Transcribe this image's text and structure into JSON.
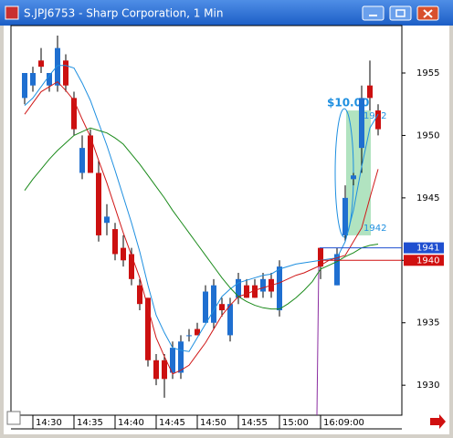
{
  "chart_data": {
    "type": "candlestick",
    "title": "S.JPJ6753 - Sharp Corporation, 1 Min",
    "categories": [
      null,
      "14:30",
      null,
      null,
      null,
      null,
      "14:35",
      null,
      null,
      null,
      null,
      "14:40",
      null,
      null,
      null,
      null,
      "14:45",
      null,
      null,
      null,
      null,
      "14:50",
      null,
      null,
      null,
      null,
      "14:55",
      null,
      null,
      null,
      null,
      "15:00",
      null,
      null,
      null,
      null,
      "16:09:00",
      null,
      null,
      null,
      null,
      null,
      null,
      null
    ],
    "open": [
      1953,
      1954,
      1956,
      1954,
      1954,
      1956,
      1953,
      1947,
      1950,
      1947,
      1943,
      1942.5,
      1941,
      1940.5,
      1938,
      1937,
      1932,
      1932,
      1931,
      1931,
      1934,
      1934.5,
      1935,
      1935,
      1936.5,
      1934,
      1937,
      1938,
      1938,
      1937.5,
      1938.5,
      1936,
      null,
      null,
      null,
      null,
      1941,
      null,
      1938,
      1942,
      1946.5,
      1949,
      1954,
      1952
    ],
    "high": [
      1955,
      1955.5,
      1957,
      1955,
      1958,
      1956.5,
      1953.5,
      1950,
      1950.5,
      1948,
      1944.5,
      1943,
      1942,
      1941,
      1938.5,
      1937,
      1932.5,
      1932.5,
      1933.5,
      1934,
      1934.5,
      1935,
      1938,
      1938.5,
      1937,
      1937,
      1939,
      1938.5,
      1938.5,
      1939,
      1939,
      1940,
      null,
      null,
      null,
      null,
      1941,
      null,
      1941,
      1946,
      1947,
      1954,
      1956,
      1952.5
    ],
    "low": [
      1952.5,
      1953.5,
      1955,
      1953.5,
      1953.5,
      1953.5,
      1950,
      1946.5,
      1947,
      1941.5,
      1942,
      1940,
      1939.5,
      1938,
      1936,
      1931.5,
      1930,
      1929,
      1930.5,
      1930.5,
      1933.5,
      1934,
      1935,
      1934.5,
      1935.5,
      1933.5,
      1936.5,
      1937,
      1937,
      1937,
      1937,
      1935.5,
      null,
      null,
      null,
      null,
      1938.5,
      null,
      1938,
      1941.5,
      1946,
      1947,
      1952,
      1950
    ],
    "close": [
      1955,
      1955,
      1955.5,
      1955,
      1957,
      1954,
      1950.5,
      1949,
      1947,
      1942,
      1943.5,
      1940.5,
      1940,
      1938.5,
      1936.5,
      1932,
      1930.5,
      1930.5,
      1933,
      1933.5,
      1934,
      1934,
      1937.5,
      1938,
      1936,
      1936.5,
      1938.5,
      1937,
      1937,
      1938.5,
      1937.5,
      1939.5,
      null,
      null,
      null,
      null,
      1939.5,
      null,
      1940.5,
      1945,
      1946.8,
      1953,
      1953,
      1950.5
    ],
    "up_color": "#1f6fd0",
    "down_color": "#cc1010",
    "ylim": [
      1927.6,
      1958.8
    ],
    "yticks": [
      1930,
      1935,
      1940,
      1945,
      1950,
      1955
    ],
    "overlays": [
      {
        "color": "#1e8fe0",
        "values": [
          1952.4,
          1953,
          1953.9,
          1954.8,
          1955.6,
          1955.6,
          1955.4,
          1954.2,
          1952.8,
          1951,
          1949.2,
          1947.2,
          1945.1,
          1943,
          1940.7,
          1938,
          1935.6,
          1934.2,
          1933,
          1932.8,
          1932.7,
          1933.8,
          1934.9,
          1936,
          1937.1,
          1937.7,
          1938.2,
          1938.4,
          1938.6,
          1938.8,
          1938.9,
          1939.3,
          1939.5,
          1939.7,
          1939.8,
          1939.9,
          1940,
          1940.1,
          1940.2,
          1941.5,
          1944,
          1947.5,
          1950.6,
          1951.7
        ]
      },
      {
        "color": "#d01818",
        "values": [
          1951.7,
          1952.6,
          1953.5,
          1953.9,
          1954.3,
          1953.6,
          1952.8,
          1951.3,
          1949.9,
          1948,
          1946.2,
          1944.2,
          1942.2,
          1940.4,
          1938.6,
          1936.2,
          1933.8,
          1932.3,
          1930.9,
          1931.2,
          1931.6,
          1932.5,
          1933.4,
          1934.5,
          1935.6,
          1936.4,
          1937.1,
          1937.3,
          1937.6,
          1937.8,
          1938,
          1938.2,
          1938.5,
          1938.8,
          1939,
          1939.3,
          1939.6,
          1940,
          1940.2,
          1940.4,
          1941.5,
          1942.6,
          1945,
          1947.3
        ]
      },
      {
        "color": "#1a8a1a",
        "values": [
          1945.6,
          1946.5,
          1947.3,
          1948.1,
          1948.8,
          1949.4,
          1950,
          1950.3,
          1950.6,
          1950.4,
          1950.2,
          1949.8,
          1949.3,
          1948.5,
          1947.7,
          1946.8,
          1945.9,
          1945,
          1944,
          1943.1,
          1942.2,
          1941.3,
          1940.4,
          1939.5,
          1938.6,
          1937.8,
          1937.1,
          1936.7,
          1936.4,
          1936.2,
          1936.1,
          1936.1,
          1936.5,
          1937,
          1937.6,
          1938.3,
          1939.3,
          1939.6,
          1939.9,
          1940.3,
          1940.6,
          1941,
          1941.2,
          1941.3
        ]
      }
    ],
    "price_tags": [
      {
        "value": 1941,
        "color": "#1f4fd0"
      },
      {
        "value": 1940,
        "color": "#d01010"
      }
    ],
    "annotation": {
      "text": "$10.00",
      "from": 1942,
      "to": 1952,
      "color": "#1e8fe0"
    }
  }
}
